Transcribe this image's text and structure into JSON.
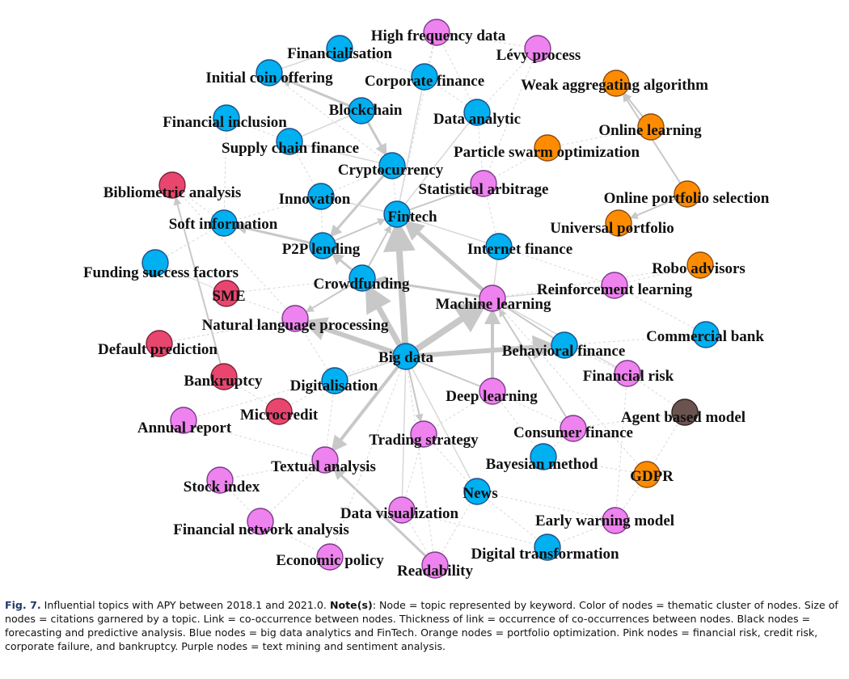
{
  "caption": {
    "fig_label": "Fig. 7.",
    "pre_note": " Influential topics with APY between 2018.1 and 2021.0. ",
    "note_label": "Note(s)",
    "body": ": Node = topic represented by keyword. Color of nodes = thematic cluster of nodes. Size of nodes = citations garnered by a topic. Link = co-occurrence between nodes. Thickness of link = occurrence of co-occurrences between nodes. Black nodes = forecasting and predictive analysis. Blue nodes = big data analytics and FinTech. Orange nodes = portfolio optimization. Pink nodes = financial risk, credit risk, corporate failure, and bankruptcy. Purple nodes = text mining and sentiment analysis."
  },
  "colors": {
    "blue": "#00b0f0",
    "purple": "#ee82ee",
    "orange": "#ff8c00",
    "pink": "#e8466e",
    "black": "#6b5450",
    "edge": "#c8c8c8"
  },
  "network": {
    "nodes": [
      {
        "label": "High frequency data",
        "cluster": "purple"
      },
      {
        "label": "Lévy process",
        "cluster": "purple"
      },
      {
        "label": "Financialisation",
        "cluster": "blue"
      },
      {
        "label": "Initial coin offering",
        "cluster": "blue"
      },
      {
        "label": "Corporate finance",
        "cluster": "blue"
      },
      {
        "label": "Weak aggregating algorithm",
        "cluster": "orange"
      },
      {
        "label": "Blockchain",
        "cluster": "blue"
      },
      {
        "label": "Financial inclusion",
        "cluster": "blue"
      },
      {
        "label": "Data analytic",
        "cluster": "blue"
      },
      {
        "label": "Online learning",
        "cluster": "orange"
      },
      {
        "label": "Supply chain finance",
        "cluster": "blue"
      },
      {
        "label": "Particle swarm optimization",
        "cluster": "orange"
      },
      {
        "label": "Cryptocurrency",
        "cluster": "blue"
      },
      {
        "label": "Bibliometric analysis",
        "cluster": "pink"
      },
      {
        "label": "Statistical arbitrage",
        "cluster": "purple"
      },
      {
        "label": "Innovation",
        "cluster": "blue"
      },
      {
        "label": "Online portfolio selection",
        "cluster": "orange"
      },
      {
        "label": "Fintech",
        "cluster": "blue"
      },
      {
        "label": "Soft information",
        "cluster": "blue"
      },
      {
        "label": "Universal portfolio",
        "cluster": "orange"
      },
      {
        "label": "P2P lending",
        "cluster": "blue"
      },
      {
        "label": "Internet finance",
        "cluster": "blue"
      },
      {
        "label": "Funding success factors",
        "cluster": "blue"
      },
      {
        "label": "Robo advisors",
        "cluster": "orange"
      },
      {
        "label": "Crowdfunding",
        "cluster": "blue"
      },
      {
        "label": "SME",
        "cluster": "pink"
      },
      {
        "label": "Reinforcement learning",
        "cluster": "purple"
      },
      {
        "label": "Machine learning",
        "cluster": "purple"
      },
      {
        "label": "Natural language processing",
        "cluster": "purple"
      },
      {
        "label": "Commercial bank",
        "cluster": "blue"
      },
      {
        "label": "Default prediction",
        "cluster": "pink"
      },
      {
        "label": "Behavioral finance",
        "cluster": "blue"
      },
      {
        "label": "Big data",
        "cluster": "blue"
      },
      {
        "label": "Financial risk",
        "cluster": "purple"
      },
      {
        "label": "Bankruptcy",
        "cluster": "pink"
      },
      {
        "label": "Digitalisation",
        "cluster": "blue"
      },
      {
        "label": "Deep learning",
        "cluster": "purple"
      },
      {
        "label": "Agent based model",
        "cluster": "black"
      },
      {
        "label": "Microcredit",
        "cluster": "pink"
      },
      {
        "label": "Annual report",
        "cluster": "purple"
      },
      {
        "label": "Consumer finance",
        "cluster": "purple"
      },
      {
        "label": "Trading strategy",
        "cluster": "purple"
      },
      {
        "label": "Textual analysis",
        "cluster": "purple"
      },
      {
        "label": "Bayesian method",
        "cluster": "blue"
      },
      {
        "label": "GDPR",
        "cluster": "orange"
      },
      {
        "label": "Stock index",
        "cluster": "purple"
      },
      {
        "label": "News",
        "cluster": "blue"
      },
      {
        "label": "Data visualization",
        "cluster": "purple"
      },
      {
        "label": "Early warning model",
        "cluster": "purple"
      },
      {
        "label": "Financial network analysis",
        "cluster": "purple"
      },
      {
        "label": "Digital transformation",
        "cluster": "blue"
      },
      {
        "label": "Economic policy",
        "cluster": "purple"
      },
      {
        "label": "Readability",
        "cluster": "purple"
      }
    ]
  }
}
